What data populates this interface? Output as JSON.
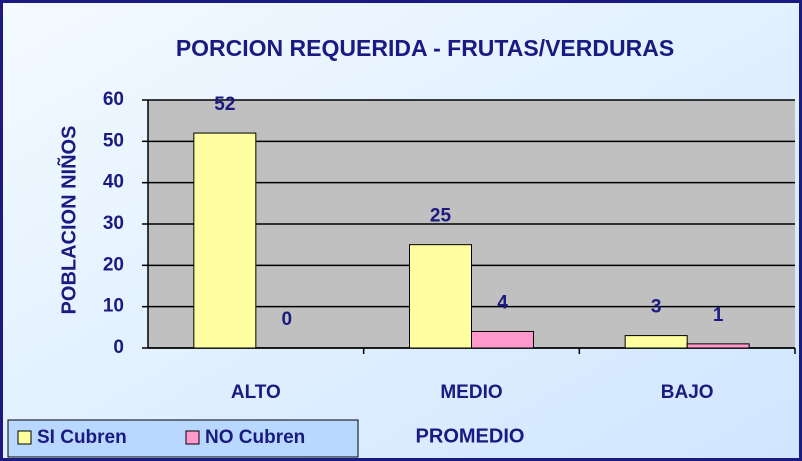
{
  "chart_data": {
    "type": "bar",
    "title": "PORCION REQUERIDA - FRUTAS/VERDURAS",
    "x_label": "PROMEDIO",
    "y_label": "POBLACION NIÑOS",
    "categories": [
      "ALTO",
      "MEDIO",
      "BAJO"
    ],
    "series": [
      {
        "name": "SI Cubren",
        "color": "#ffffa0",
        "values": [
          52,
          25,
          3
        ]
      },
      {
        "name": "NO Cubren",
        "color": "#ff99cc",
        "values": [
          0,
          4,
          1
        ]
      }
    ],
    "ylim": [
      0,
      60
    ],
    "yticks": [
      0,
      10,
      20,
      30,
      40,
      50,
      60
    ],
    "grid": true,
    "legend": "bottom-left"
  }
}
